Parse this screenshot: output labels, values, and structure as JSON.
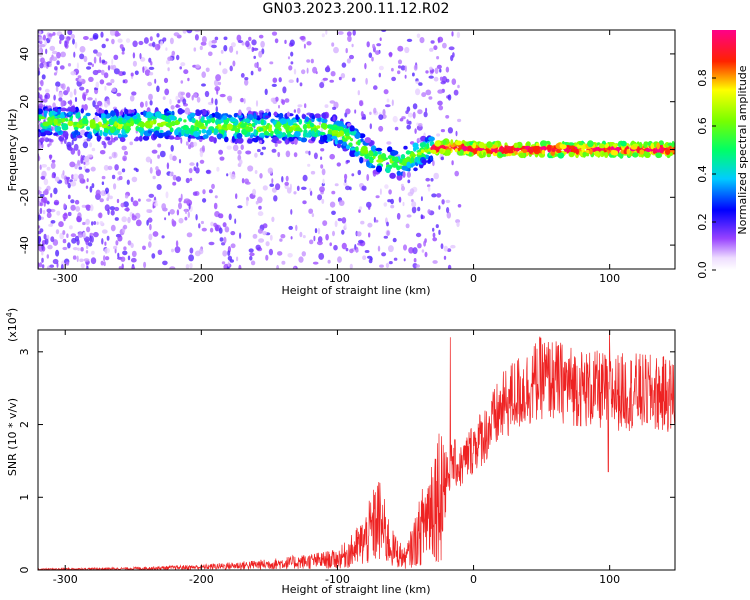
{
  "title": "GN03.2023.200.11.12.R02",
  "colors": {
    "snr_line": "#ee2222",
    "axes": "#000000",
    "background": "#ffffff"
  },
  "chart_data": [
    {
      "type": "heatmap",
      "xlabel": "Height of straight line (km)",
      "ylabel": "Frequency (Hz)",
      "xlim": [
        -320,
        148
      ],
      "ylim": [
        -50,
        50
      ],
      "x_ticks": [
        -300,
        -200,
        -100,
        0,
        100
      ],
      "y_ticks": [
        -40,
        -20,
        0,
        20,
        40
      ],
      "colorbar": {
        "label": "Normalized spectral amplitude",
        "range": [
          0.0,
          1.0
        ],
        "ticks": [
          "0.0",
          "0.2",
          "0.4",
          "0.6",
          "0.8"
        ],
        "colors": [
          "#ffffff",
          "#cc99ff",
          "#7700ff",
          "#0000ff",
          "#00ffff",
          "#00ff00",
          "#ffff00",
          "#ff0000",
          "#ff0088"
        ]
      },
      "ridge": {
        "height_km": [
          -320,
          -260,
          -230,
          -200,
          -150,
          -110,
          -95,
          -85,
          -75,
          -65,
          -55,
          -45,
          -35,
          -25,
          -10,
          0,
          20,
          50,
          100,
          148
        ],
        "frequency_hz": [
          12,
          10,
          11,
          10,
          9,
          9,
          6,
          2,
          -3,
          -5,
          -6,
          -3,
          0,
          1,
          1,
          0,
          0,
          0,
          0,
          0
        ]
      }
    },
    {
      "type": "line",
      "xlabel": "Height of straight line (km)",
      "ylabel": "SNR (10 * v/v)",
      "y_multiplier": "(x10",
      "y_multiplier_exp": "4",
      "y_multiplier_close": ")",
      "xlim": [
        -320,
        148
      ],
      "ylim": [
        0,
        3.3
      ],
      "x_ticks": [
        -300,
        -200,
        -100,
        0,
        100
      ],
      "y_ticks": [
        0,
        1,
        2,
        3
      ],
      "series": [
        {
          "x": [
            -320,
            -250,
            -200,
            -150,
            -120,
            -100,
            -90,
            -80,
            -70,
            -60,
            -50,
            -40,
            -30,
            -20,
            -15,
            -10,
            0,
            10,
            20,
            30,
            40,
            50,
            60,
            80,
            100,
            120,
            148
          ],
          "y": [
            0.01,
            0.02,
            0.04,
            0.08,
            0.12,
            0.15,
            0.25,
            0.4,
            0.7,
            0.3,
            0.15,
            0.5,
            0.95,
            1.25,
            1.5,
            1.4,
            1.7,
            1.9,
            2.2,
            2.4,
            2.5,
            2.65,
            2.6,
            2.5,
            2.45,
            2.45,
            2.4
          ],
          "spikes": [
            {
              "x": -17,
              "y": 3.2
            },
            {
              "x": 100,
              "y": 3.3
            },
            {
              "x": 99,
              "y": 1.35
            }
          ]
        }
      ]
    }
  ]
}
